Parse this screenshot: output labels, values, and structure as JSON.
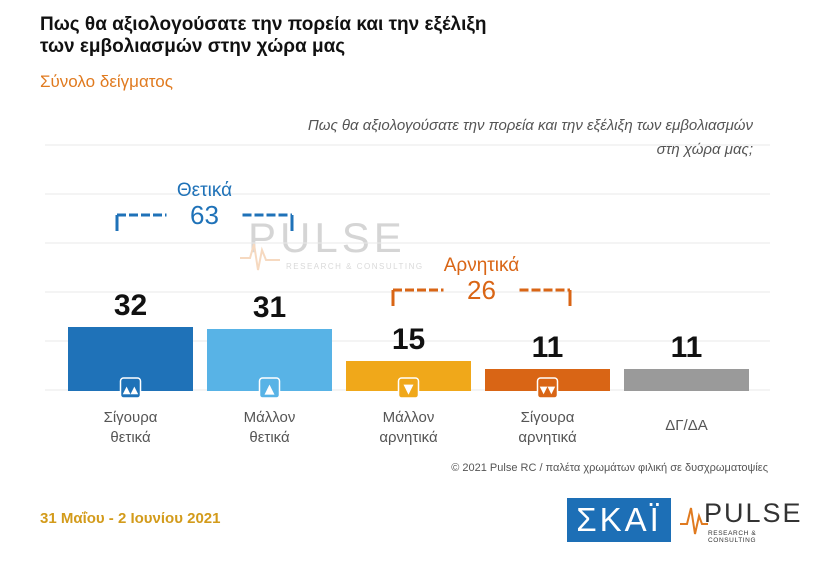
{
  "header": {
    "title_line1": "Πως θα αξιολογούσατε την πορεία και την εξέλιξη",
    "title_line2": "των εμβολιασμών στην χώρα μας",
    "subtitle": "Σύνολο δείγματος"
  },
  "chart_data": {
    "type": "bar",
    "title": "Πως θα αξιολογούσατε την πορεία και την εξέλιξη των εμβολιασμών στη χώρα μας;",
    "categories": [
      [
        "Σίγουρα",
        "θετικά"
      ],
      [
        "Μάλλον",
        "θετικά"
      ],
      [
        "Μάλλον",
        "αρνητικά"
      ],
      [
        "Σίγουρα",
        "αρνητικά"
      ],
      [
        "ΔΓ/ΔΑ"
      ]
    ],
    "values": [
      32,
      31,
      15,
      11,
      11
    ],
    "colors": [
      "#1f72b8",
      "#58b3e6",
      "#f0a81a",
      "#d96515",
      "#9a9a9a"
    ],
    "icons": [
      "thumbs-up-double-icon",
      "thumbs-up-icon",
      "thumbs-down-icon",
      "thumbs-down-double-icon",
      ""
    ],
    "groups": [
      {
        "label": "Θετικά",
        "total": "63",
        "color": "#1f72b8"
      },
      {
        "label": "Αρνητικά",
        "total": "26",
        "color": "#d96515"
      }
    ],
    "question_line1": "Πως θα αξιολογούσατε την πορεία και την εξέλιξη των εμβολιασμών",
    "question_line2": "στη χώρα μας;",
    "ylim": [
      0,
      100
    ],
    "grid": true,
    "legend": "none"
  },
  "watermark": {
    "name": "PULSE",
    "sub": "RESEARCH & CONSULTING"
  },
  "footer": {
    "copyright": "© 2021 Pulse RC  /  παλέτα χρωμάτων φιλική σε δυσχρωματοψίες",
    "date": "31 Μαΐου - 2 Ιουνίου 2021",
    "logo_skai": "ΣΚΑΪ",
    "logo_pulse_name": "PULSE",
    "logo_pulse_sub": "RESEARCH & CONSULTING"
  }
}
